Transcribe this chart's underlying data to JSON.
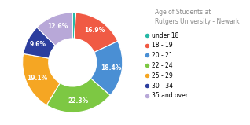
{
  "title": "Age of Students at\nRutgers University - Newark",
  "labels": [
    "under 18",
    "18 - 19",
    "20 - 21",
    "22 - 24",
    "25 - 29",
    "30 - 34",
    "35 and over"
  ],
  "values": [
    1.1,
    16.9,
    18.4,
    22.3,
    19.1,
    9.6,
    12.6
  ],
  "colors": [
    "#26b8a5",
    "#f05a44",
    "#4a8fd4",
    "#7dc843",
    "#f5a623",
    "#2c3e9e",
    "#b8a8d8"
  ],
  "title_fontsize": 5.5,
  "label_fontsize": 5.5,
  "legend_fontsize": 5.5,
  "title_color": "#888888"
}
